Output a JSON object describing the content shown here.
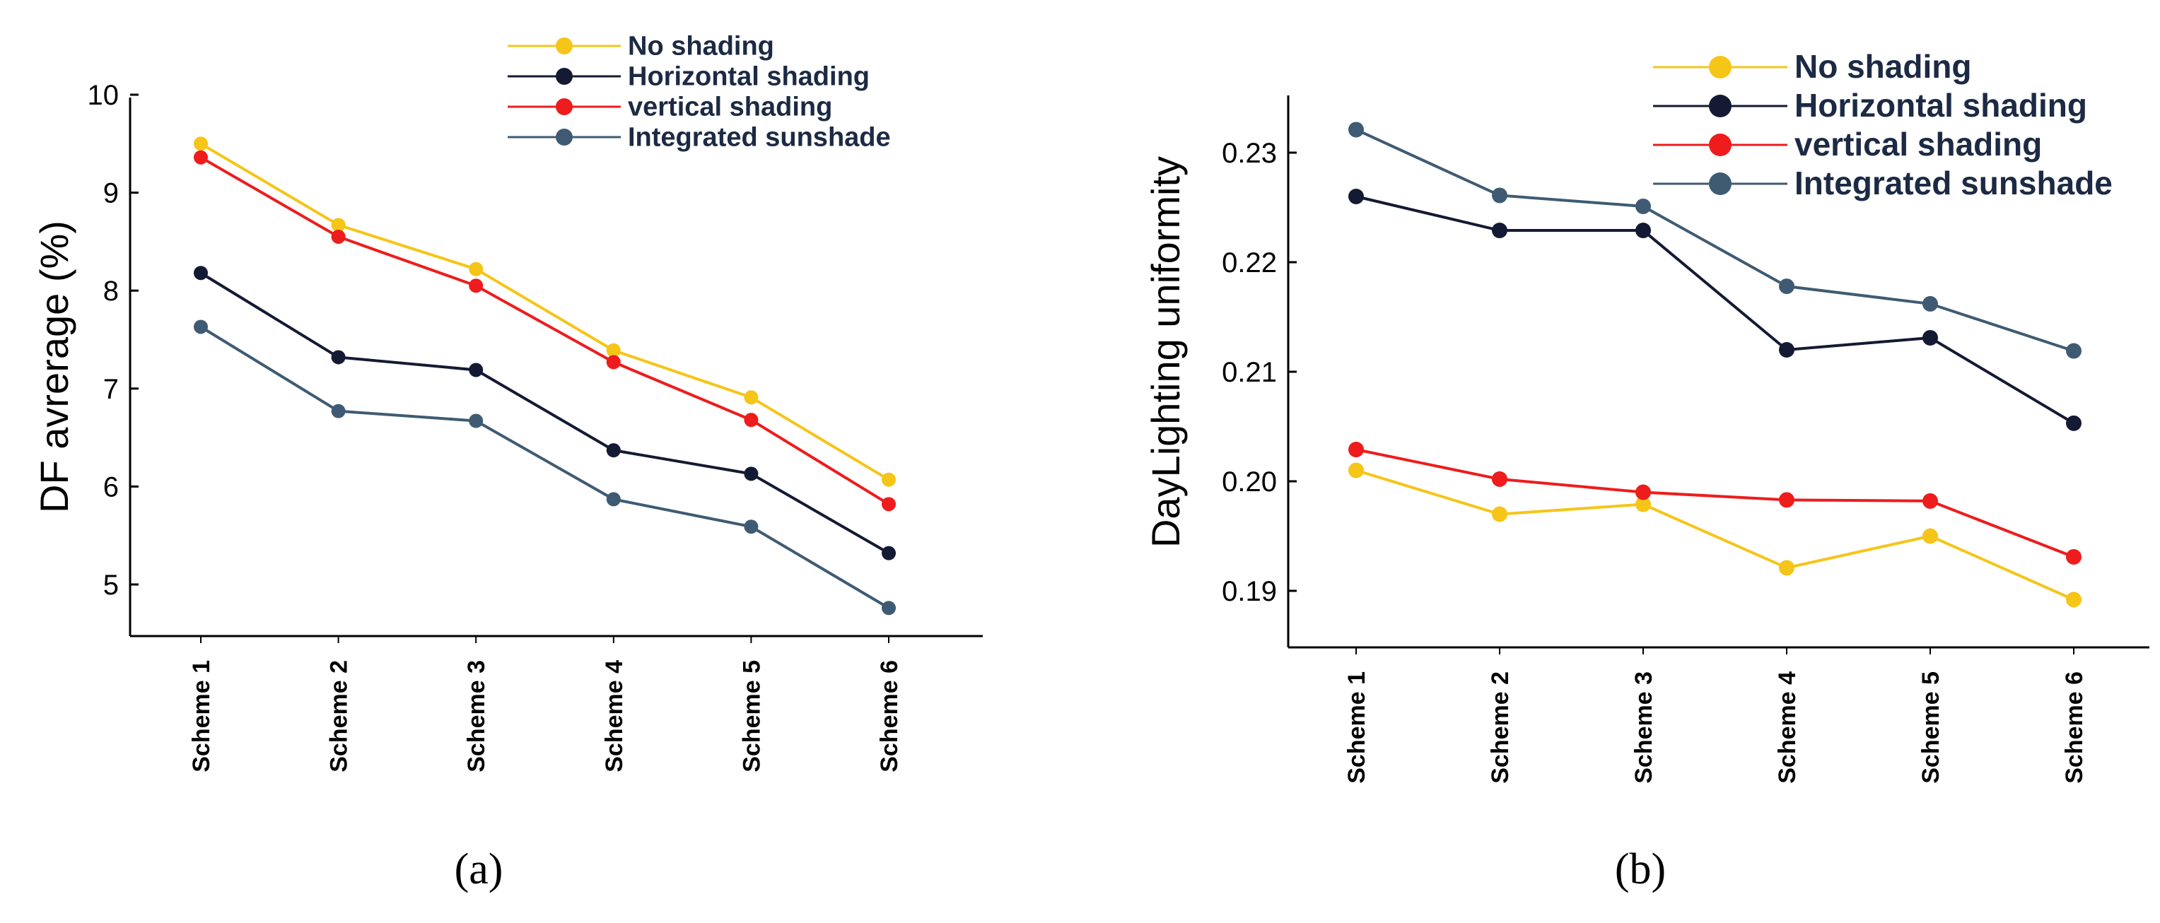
{
  "chart_data": [
    {
      "type": "line",
      "panel_label": "(a)",
      "title": "",
      "xlabel": "",
      "ylabel": "DF avrerage (%)",
      "ylim": [
        4.5,
        10
      ],
      "yticks": [
        "5",
        "6",
        "7",
        "8",
        "9",
        "10"
      ],
      "categories": [
        "Scheme 1",
        "Scheme 2",
        "Scheme 3",
        "Scheme 4",
        "Scheme 5",
        "Scheme 6"
      ],
      "legend_position": "top-right",
      "series": [
        {
          "name": "No shading",
          "color": "#f5c518",
          "values": [
            9.5,
            8.67,
            8.22,
            7.39,
            6.91,
            6.07
          ]
        },
        {
          "name": "Horizontal shading",
          "color": "#141a33",
          "values": [
            8.18,
            7.32,
            7.19,
            6.37,
            6.13,
            5.32
          ]
        },
        {
          "name": "vertical shading",
          "color": "#ee1c1c",
          "values": [
            9.36,
            8.55,
            8.05,
            7.27,
            6.68,
            5.82
          ]
        },
        {
          "name": "Integrated sunshade",
          "color": "#3f5b73",
          "values": [
            7.63,
            6.77,
            6.67,
            5.87,
            5.59,
            4.76
          ]
        }
      ]
    },
    {
      "type": "line",
      "panel_label": "(b)",
      "title": "",
      "xlabel": "",
      "ylabel": "DayLighting uniformity",
      "ylim": [
        0.186,
        0.235
      ],
      "yticks": [
        "0.19",
        "0.20",
        "0.21",
        "0.22",
        "0.23"
      ],
      "categories": [
        "Scheme 1",
        "Scheme 2",
        "Scheme 3",
        "Scheme 4",
        "Scheme 5",
        "Scheme 6"
      ],
      "legend_position": "top-right",
      "series": [
        {
          "name": "No shading",
          "color": "#f5c518",
          "values": [
            0.201,
            0.197,
            0.1979,
            0.1921,
            0.195,
            0.1892
          ]
        },
        {
          "name": "Horizontal shading",
          "color": "#141a33",
          "values": [
            0.226,
            0.2229,
            0.2229,
            0.212,
            0.2131,
            0.2053
          ]
        },
        {
          "name": "vertical shading",
          "color": "#ee1c1c",
          "values": [
            0.2029,
            0.2002,
            0.199,
            0.1983,
            0.1982,
            0.1931
          ]
        },
        {
          "name": "Integrated sunshade",
          "color": "#3f5b73",
          "values": [
            0.2321,
            0.2261,
            0.2251,
            0.2178,
            0.2162,
            0.2119
          ]
        }
      ]
    }
  ]
}
